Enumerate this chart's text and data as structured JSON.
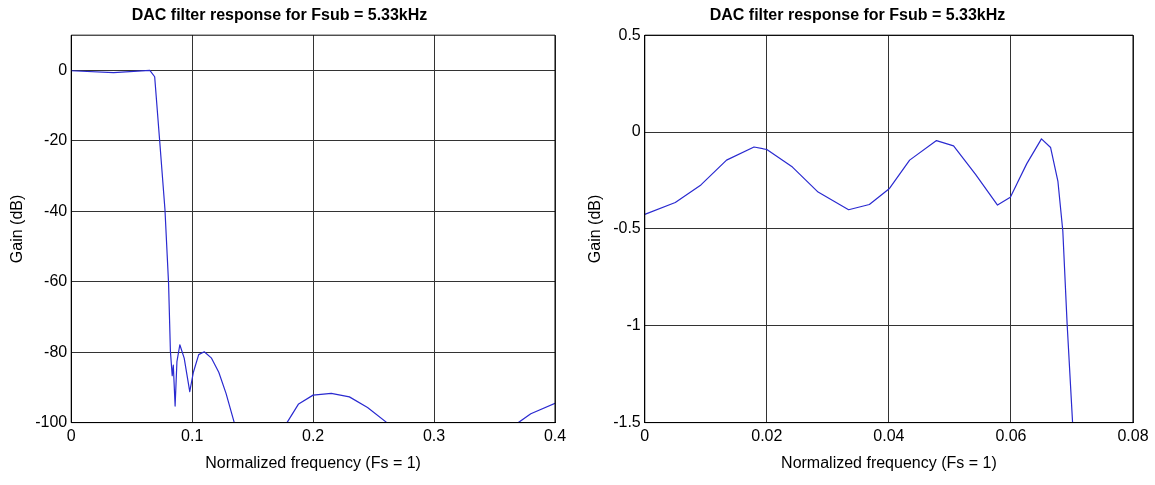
{
  "chart_data": [
    {
      "type": "line",
      "title": "DAC filter response for Fsub = 5.33kHz",
      "xlabel": "Normalized frequency (Fs = 1)",
      "ylabel": "Gain (dB)",
      "xlim": [
        0,
        0.4
      ],
      "ylim": [
        -100,
        10
      ],
      "xticks": [
        0,
        0.1,
        0.2,
        0.3,
        0.4
      ],
      "yticks": [
        -100,
        -80,
        -60,
        -40,
        -20,
        0
      ],
      "grid": true,
      "marker": "none",
      "line_style": "solid",
      "x": [
        0,
        0.035,
        0.065,
        0.069,
        0.073,
        0.0775,
        0.0805,
        0.082,
        0.0835,
        0.0844,
        0.0859,
        0.0874,
        0.0898,
        0.0934,
        0.098,
        0.101,
        0.1054,
        0.11,
        0.116,
        0.122,
        0.128,
        0.1348,
        0.156,
        0.1784,
        0.188,
        0.2,
        0.215,
        0.23,
        0.245,
        0.261,
        0.315,
        0.3697,
        0.38,
        0.4
      ],
      "series": [
        {
          "color": "#2a2ad0",
          "values": [
            -0.1,
            -0.6,
            0,
            -1.8,
            -19.4,
            -39.5,
            -60.6,
            -79.7,
            -86.7,
            -83.7,
            -95.3,
            -82.7,
            -77.9,
            -81.7,
            -91.2,
            -85.7,
            -80.7,
            -79.9,
            -81.7,
            -85.7,
            -91.7,
            -100,
            null,
            -100,
            -94.7,
            -92.2,
            -91.7,
            -92.7,
            -95.7,
            -100,
            null,
            -100,
            -97.5,
            -94.5
          ]
        }
      ]
    },
    {
      "type": "line",
      "title": "DAC filter response for Fsub = 5.33kHz",
      "xlabel": "Normalized frequency (Fs = 1)",
      "ylabel": "Gain (dB)",
      "xlim": [
        0,
        0.08
      ],
      "ylim": [
        -1.5,
        0.5
      ],
      "xticks": [
        0,
        0.02,
        0.04,
        0.06,
        0.08
      ],
      "yticks": [
        -1.5,
        -1,
        -0.5,
        0,
        0.5
      ],
      "grid": true,
      "marker": "none",
      "line_style": "solid",
      "x": [
        0,
        0.005,
        0.0092,
        0.0134,
        0.0179,
        0.02,
        0.0242,
        0.0284,
        0.0334,
        0.0368,
        0.0401,
        0.0434,
        0.0478,
        0.0506,
        0.0542,
        0.0578,
        0.0599,
        0.0626,
        0.065,
        0.0665,
        0.0677,
        0.0685,
        0.0692,
        0.0701
      ],
      "series": [
        {
          "color": "#2a2ad0",
          "values": [
            -0.425,
            -0.364,
            -0.273,
            -0.145,
            -0.077,
            -0.09,
            -0.181,
            -0.31,
            -0.401,
            -0.374,
            -0.291,
            -0.145,
            -0.044,
            -0.071,
            -0.218,
            -0.377,
            -0.337,
            -0.163,
            -0.035,
            -0.08,
            -0.255,
            -0.511,
            -0.987,
            -1.5
          ]
        }
      ]
    }
  ]
}
